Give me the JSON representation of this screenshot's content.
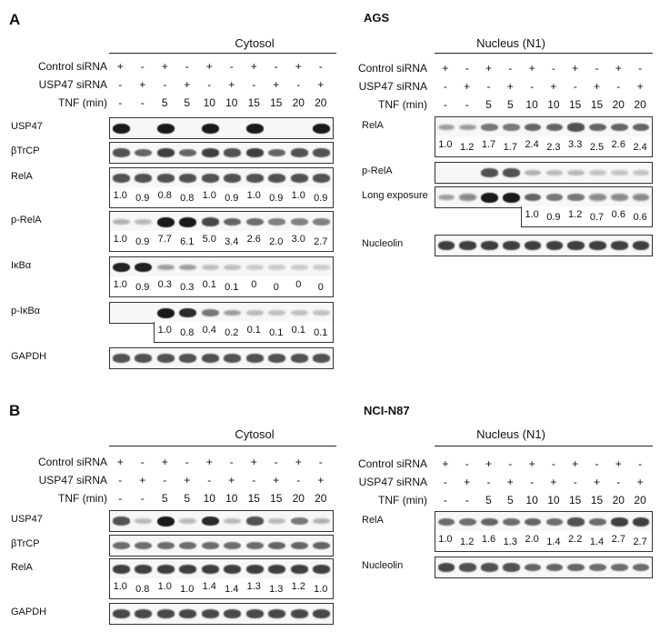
{
  "figure": {
    "panels": [
      {
        "letter": "A",
        "cell_line": "AGS",
        "sections": [
          {
            "title": "Cytosol",
            "conditions": {
              "control_sirna": [
                "+",
                "-",
                "+",
                "-",
                "+",
                "-",
                "+",
                "-",
                "+",
                "-"
              ],
              "usp47_sirna": [
                "-",
                "+",
                "-",
                "+",
                "-",
                "+",
                "-",
                "+",
                "-",
                "+"
              ],
              "tnf_min": [
                "-",
                "-",
                "5",
                "5",
                "10",
                "10",
                "15",
                "15",
                "20",
                "20"
              ]
            },
            "blots": [
              {
                "label": "USP47",
                "intensity": [
                  1,
                  0,
                  1,
                  0,
                  1,
                  0,
                  1,
                  0,
                  0,
                  1
                ]
              },
              {
                "label": "βTrCP",
                "intensity": [
                  0.7,
                  0.6,
                  0.8,
                  0.6,
                  0.8,
                  0.7,
                  0.8,
                  0.6,
                  0.7,
                  0.7
                ]
              },
              {
                "label": "RelA",
                "intensity": [
                  0.7,
                  0.7,
                  0.7,
                  0.7,
                  0.7,
                  0.7,
                  0.7,
                  0.7,
                  0.7,
                  0.7
                ],
                "quant": [
                  "1.0",
                  "0.9",
                  "0.8",
                  "0.8",
                  "1.0",
                  "0.9",
                  "1.0",
                  "0.9",
                  "1.0",
                  "0.9"
                ]
              },
              {
                "label": "p-RelA",
                "intensity": [
                  0.2,
                  0.15,
                  1,
                  1,
                  0.75,
                  0.6,
                  0.55,
                  0.45,
                  0.45,
                  0.45
                ],
                "quant": [
                  "1.0",
                  "0.9",
                  "7.7",
                  "6.1",
                  "5.0",
                  "3.4",
                  "2.6",
                  "2.0",
                  "3.0",
                  "2.7"
                ]
              },
              {
                "label": "IκBα",
                "intensity": [
                  0.95,
                  0.95,
                  0.3,
                  0.3,
                  0.12,
                  0.12,
                  0.06,
                  0.06,
                  0.06,
                  0.06
                ],
                "quant": [
                  "1.0",
                  "0.9",
                  "0.3",
                  "0.3",
                  "0.1",
                  "0.1",
                  "0",
                  "0",
                  "0",
                  "0"
                ]
              },
              {
                "label": "p-IκBα",
                "intensity": [
                  0,
                  0,
                  1,
                  0.9,
                  0.5,
                  0.3,
                  0.15,
                  0.12,
                  0.12,
                  0.12
                ],
                "quant": [
                  "1.0",
                  "0.8",
                  "0.4",
                  "0.2",
                  "0.1",
                  "0.1",
                  "0.1",
                  "0.1"
                ],
                "quant_start": 2
              },
              {
                "label": "GAPDH",
                "intensity": [
                  0.7,
                  0.7,
                  0.7,
                  0.7,
                  0.7,
                  0.7,
                  0.7,
                  0.7,
                  0.7,
                  0.7
                ]
              }
            ]
          },
          {
            "title": "Nucleus (N1)",
            "conditions": {
              "control_sirna": [
                "+",
                "-",
                "+",
                "-",
                "+",
                "-",
                "+",
                "-",
                "+",
                "-"
              ],
              "usp47_sirna": [
                "-",
                "+",
                "-",
                "+",
                "-",
                "+",
                "-",
                "+",
                "-",
                "+"
              ],
              "tnf_min": [
                "-",
                "-",
                "5",
                "5",
                "10",
                "10",
                "15",
                "15",
                "20",
                "20"
              ]
            },
            "blots": [
              {
                "label": "RelA",
                "intensity": [
                  0.3,
                  0.3,
                  0.5,
                  0.5,
                  0.6,
                  0.6,
                  0.7,
                  0.6,
                  0.6,
                  0.6
                ],
                "quant": [
                  "1.0",
                  "1.2",
                  "1.7",
                  "1.7",
                  "2.4",
                  "2.3",
                  "3.3",
                  "2.5",
                  "2.6",
                  "2.4"
                ]
              },
              {
                "label": "p-RelA",
                "intensity": [
                  0,
                  0,
                  0.7,
                  0.7,
                  0.2,
                  0.15,
                  0.15,
                  0.1,
                  0.1,
                  0.1
                ]
              },
              {
                "label": "Long exposure",
                "intensity": [
                  0.3,
                  0.4,
                  1,
                  1,
                  0.6,
                  0.5,
                  0.5,
                  0.4,
                  0.4,
                  0.4
                ],
                "quant": [
                  "1.0",
                  "0.9",
                  "1.2",
                  "0.7",
                  "0.6",
                  "0.6"
                ],
                "quant_start": 4
              },
              {
                "label": "Nucleolin",
                "intensity": [
                  0.8,
                  0.8,
                  0.8,
                  0.8,
                  0.8,
                  0.8,
                  0.8,
                  0.8,
                  0.8,
                  0.8
                ]
              }
            ]
          }
        ]
      },
      {
        "letter": "B",
        "cell_line": "NCI-N87",
        "sections": [
          {
            "title": "Cytosol",
            "conditions": {
              "control_sirna": [
                "+",
                "-",
                "+",
                "-",
                "+",
                "-",
                "+",
                "-",
                "+",
                "-"
              ],
              "usp47_sirna": [
                "-",
                "+",
                "-",
                "+",
                "-",
                "+",
                "-",
                "+",
                "-",
                "+"
              ],
              "tnf_min": [
                "-",
                "-",
                "5",
                "5",
                "10",
                "10",
                "15",
                "15",
                "20",
                "20"
              ]
            },
            "blots": [
              {
                "label": "USP47",
                "intensity": [
                  0.7,
                  0.15,
                  1,
                  0.15,
                  0.9,
                  0.15,
                  0.7,
                  0.15,
                  0.5,
                  0.2
                ]
              },
              {
                "label": "βTrCP",
                "intensity": [
                  0.55,
                  0.55,
                  0.55,
                  0.55,
                  0.55,
                  0.55,
                  0.55,
                  0.6,
                  0.6,
                  0.6
                ]
              },
              {
                "label": "RelA",
                "intensity": [
                  0.8,
                  0.8,
                  0.8,
                  0.8,
                  0.8,
                  0.8,
                  0.8,
                  0.8,
                  0.8,
                  0.8
                ],
                "quant": [
                  "1.0",
                  "0.8",
                  "1.0",
                  "1.0",
                  "1.4",
                  "1.4",
                  "1.3",
                  "1.3",
                  "1.2",
                  "1.0"
                ]
              },
              {
                "label": "GAPDH",
                "intensity": [
                  0.75,
                  0.75,
                  0.75,
                  0.75,
                  0.75,
                  0.75,
                  0.75,
                  0.75,
                  0.75,
                  0.75
                ]
              }
            ]
          },
          {
            "title": "Nucleus (N1)",
            "conditions": {
              "control_sirna": [
                "+",
                "-",
                "+",
                "-",
                "+",
                "-",
                "+",
                "-",
                "+",
                "-"
              ],
              "usp47_sirna": [
                "-",
                "+",
                "-",
                "+",
                "-",
                "+",
                "-",
                "+",
                "-",
                "+"
              ],
              "tnf_min": [
                "-",
                "-",
                "5",
                "5",
                "10",
                "10",
                "15",
                "15",
                "20",
                "20"
              ]
            },
            "blots": [
              {
                "label": "RelA",
                "intensity": [
                  0.55,
                  0.55,
                  0.6,
                  0.55,
                  0.6,
                  0.55,
                  0.7,
                  0.55,
                  0.8,
                  0.8
                ],
                "quant": [
                  "1.0",
                  "1.2",
                  "1.6",
                  "1.3",
                  "2.0",
                  "1.4",
                  "2.2",
                  "1.4",
                  "2.7",
                  "2.7"
                ]
              },
              {
                "label": "Nucleolin",
                "intensity": [
                  0.75,
                  0.7,
                  0.7,
                  0.7,
                  0.6,
                  0.6,
                  0.6,
                  0.55,
                  0.55,
                  0.55
                ]
              }
            ]
          }
        ]
      }
    ],
    "row_labels": {
      "control_sirna": "Control siRNA",
      "usp47_sirna": "USP47 siRNA",
      "tnf_min": "TNF (min)"
    },
    "band_color": "#1a1a1a"
  }
}
